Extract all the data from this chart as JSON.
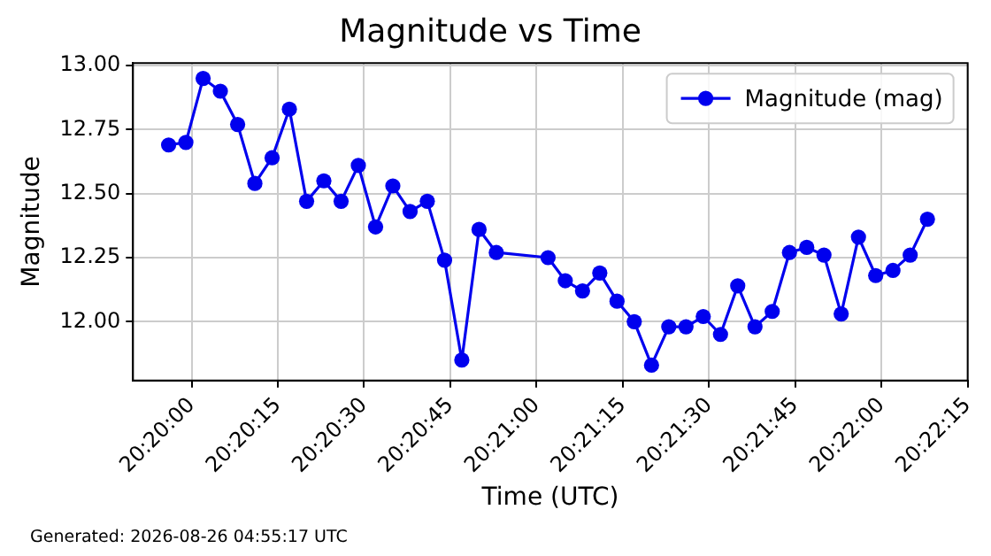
{
  "chart_data": {
    "type": "line",
    "title": "Magnitude vs Time",
    "xlabel": "Time (UTC)",
    "ylabel": "Magnitude",
    "annotations": [
      "Generated: 2026-08-26 04:55:17 UTC"
    ],
    "x": [
      20.332222,
      20.333056,
      20.333889,
      20.334722,
      20.335556,
      20.336389,
      20.337222,
      20.338056,
      20.338889,
      20.339722,
      20.340556,
      20.341389,
      20.342222,
      20.343056,
      20.343889,
      20.344722,
      20.345556,
      20.346389,
      20.347222,
      20.348056,
      20.350556,
      20.351389,
      20.352222,
      20.353056,
      20.353889,
      20.354722,
      20.355556,
      20.356389,
      20.357222,
      20.358056,
      20.358889,
      20.359722,
      20.360556,
      20.361389,
      20.362222,
      20.363056,
      20.363889,
      20.364722,
      20.365556,
      20.366389,
      20.367222,
      20.368056,
      20.368889
    ],
    "series": [
      {
        "name": "Magnitude (mag)",
        "color": "#0000ee",
        "values": [
          12.69,
          12.7,
          12.95,
          12.9,
          12.77,
          12.54,
          12.64,
          12.83,
          12.47,
          12.55,
          12.47,
          12.61,
          12.37,
          12.53,
          12.43,
          12.47,
          12.24,
          11.85,
          12.36,
          12.27,
          12.25,
          12.16,
          12.12,
          12.19,
          12.08,
          12.0,
          11.83,
          11.98,
          11.98,
          12.02,
          11.95,
          12.14,
          11.98,
          12.04,
          12.27,
          12.29,
          12.26,
          12.03,
          12.33,
          12.18,
          12.2,
          12.26,
          12.4
        ]
      }
    ],
    "xlim": [
      20.3305,
      20.370833
    ],
    "xticks": [
      {
        "value": 20.333333,
        "label": "20:20:00"
      },
      {
        "value": 20.3375,
        "label": "20:20:15"
      },
      {
        "value": 20.341667,
        "label": "20:20:30"
      },
      {
        "value": 20.345833,
        "label": "20:20:45"
      },
      {
        "value": 20.35,
        "label": "20:21:00"
      },
      {
        "value": 20.354167,
        "label": "20:21:15"
      },
      {
        "value": 20.358333,
        "label": "20:21:30"
      },
      {
        "value": 20.3625,
        "label": "20:21:45"
      },
      {
        "value": 20.366667,
        "label": "20:22:00"
      },
      {
        "value": 20.370833,
        "label": "20:22:15"
      }
    ],
    "ylim": [
      11.77,
      13.01
    ],
    "yticks": [
      {
        "value": 12,
        "label": "12.00"
      },
      {
        "value": 12.25,
        "label": "12.25"
      },
      {
        "value": 12.5,
        "label": "12.50"
      },
      {
        "value": 12.75,
        "label": "12.75"
      },
      {
        "value": 13,
        "label": "13.00"
      }
    ],
    "grid": true,
    "legend": "top right",
    "marker": "circle",
    "line_style": "solid"
  }
}
